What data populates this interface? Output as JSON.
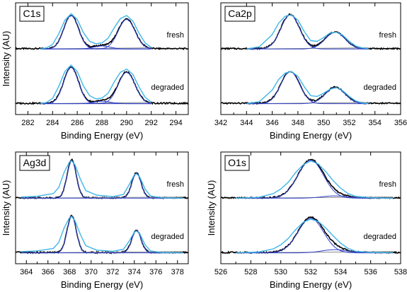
{
  "chart_data": [
    {
      "type": "line",
      "panel_label": "C1s",
      "xlabel": "Binding Energy (eV)",
      "ylabel": "Intensity (AU)",
      "xlim": [
        281,
        295
      ],
      "xticks": [
        282,
        284,
        286,
        288,
        290,
        292,
        294
      ],
      "ylim": [
        0,
        1
      ],
      "annotations": [
        "fresh",
        "degraded"
      ],
      "peaks": [
        {
          "center": 285.5,
          "fwhm": 1.4,
          "height_fresh": 0.88,
          "height_degraded": 0.9
        },
        {
          "center": 290.0,
          "fwhm": 1.6,
          "height_fresh": 0.78,
          "height_degraded": 0.78
        },
        {
          "center": 288.0,
          "fwhm": 1.6,
          "height_fresh": 0.08,
          "height_degraded": 0.06
        }
      ],
      "series": [
        {
          "name": "fresh",
          "offset": 0.55,
          "x": [
            283.0,
            283.5,
            284.0,
            284.5,
            285.0,
            285.5,
            286.0,
            286.5,
            287.0,
            287.5,
            288.0,
            288.5,
            289.0,
            289.5,
            290.0,
            290.5,
            291.0,
            291.5,
            292.0
          ],
          "y": [
            0.02,
            0.05,
            0.14,
            0.42,
            0.78,
            0.95,
            0.8,
            0.45,
            0.22,
            0.16,
            0.18,
            0.3,
            0.58,
            0.82,
            0.9,
            0.76,
            0.44,
            0.18,
            0.06
          ]
        },
        {
          "name": "degraded",
          "offset": 0.0,
          "x": [
            283.0,
            283.5,
            284.0,
            284.5,
            285.0,
            285.5,
            286.0,
            286.5,
            287.0,
            287.5,
            288.0,
            288.5,
            289.0,
            289.5,
            290.0,
            290.5,
            291.0,
            291.5,
            292.0
          ],
          "y": [
            0.02,
            0.05,
            0.15,
            0.45,
            0.82,
            0.98,
            0.82,
            0.46,
            0.22,
            0.14,
            0.16,
            0.28,
            0.56,
            0.8,
            0.88,
            0.75,
            0.44,
            0.18,
            0.06
          ]
        }
      ]
    },
    {
      "type": "line",
      "panel_label": "Ca2p",
      "xlabel": "Binding Energy (eV)",
      "ylabel": "",
      "xlim": [
        342,
        356
      ],
      "xticks": [
        342,
        344,
        346,
        348,
        350,
        352,
        354,
        356
      ],
      "ylim": [
        0,
        1
      ],
      "annotations": [
        "fresh",
        "degraded"
      ],
      "peaks": [
        {
          "center": 347.4,
          "fwhm": 1.7,
          "height_fresh": 0.9,
          "height_degraded": 0.8
        },
        {
          "center": 350.9,
          "fwhm": 1.8,
          "height_fresh": 0.44,
          "height_degraded": 0.4
        }
      ],
      "series": [
        {
          "name": "fresh",
          "offset": 0.55,
          "x": [
            344.0,
            345.0,
            346.0,
            346.5,
            347.0,
            347.5,
            348.0,
            348.5,
            349.0,
            349.5,
            350.0,
            350.5,
            351.0,
            351.5,
            352.0,
            352.5,
            353.0,
            353.5
          ],
          "y": [
            0.02,
            0.08,
            0.4,
            0.7,
            0.88,
            0.92,
            0.78,
            0.48,
            0.24,
            0.22,
            0.32,
            0.44,
            0.46,
            0.38,
            0.22,
            0.1,
            0.05,
            0.03
          ]
        },
        {
          "name": "degraded",
          "offset": 0.0,
          "x": [
            344.0,
            345.0,
            346.0,
            346.5,
            347.0,
            347.5,
            348.0,
            348.5,
            349.0,
            349.5,
            350.0,
            350.5,
            351.0,
            351.5,
            352.0,
            352.5,
            353.0,
            353.5
          ],
          "y": [
            0.02,
            0.07,
            0.36,
            0.62,
            0.78,
            0.82,
            0.7,
            0.44,
            0.22,
            0.2,
            0.28,
            0.38,
            0.42,
            0.34,
            0.2,
            0.09,
            0.04,
            0.02
          ]
        }
      ]
    },
    {
      "type": "line",
      "panel_label": "Ag3d",
      "xlabel": "Binding Energy (eV)",
      "ylabel": "Intensity (AU)",
      "xlim": [
        363,
        379
      ],
      "xticks": [
        364,
        366,
        368,
        370,
        372,
        374,
        376,
        378
      ],
      "ylim": [
        0,
        1
      ],
      "annotations": [
        "fresh",
        "degraded"
      ],
      "peaks": [
        {
          "center": 368.2,
          "fwhm": 1.0,
          "height_fresh": 1.0,
          "height_degraded": 0.92
        },
        {
          "center": 374.2,
          "fwhm": 1.0,
          "height_fresh": 0.66,
          "height_degraded": 0.56
        }
      ],
      "series": [
        {
          "name": "fresh",
          "offset": 0.55,
          "x": [
            363.5,
            365.0,
            366.5,
            367.0,
            367.5,
            368.0,
            368.2,
            368.5,
            369.0,
            369.5,
            370.5,
            372.0,
            373.0,
            373.5,
            374.0,
            374.2,
            374.5,
            375.0,
            375.5,
            376.5,
            378.5
          ],
          "y": [
            0.05,
            0.07,
            0.14,
            0.3,
            0.7,
            0.98,
            1.0,
            0.9,
            0.52,
            0.22,
            0.1,
            0.06,
            0.12,
            0.36,
            0.64,
            0.66,
            0.58,
            0.26,
            0.08,
            0.03,
            0.02
          ]
        },
        {
          "name": "degraded",
          "offset": 0.0,
          "x": [
            363.5,
            365.0,
            366.5,
            367.0,
            367.5,
            368.0,
            368.2,
            368.5,
            369.0,
            369.5,
            370.5,
            372.0,
            373.0,
            373.5,
            374.0,
            374.2,
            374.5,
            375.0,
            375.5,
            376.5,
            378.5
          ],
          "y": [
            0.05,
            0.07,
            0.13,
            0.28,
            0.64,
            0.9,
            0.92,
            0.82,
            0.48,
            0.2,
            0.09,
            0.06,
            0.11,
            0.3,
            0.54,
            0.56,
            0.5,
            0.22,
            0.07,
            0.03,
            0.02
          ]
        }
      ]
    },
    {
      "type": "line",
      "panel_label": "O1s",
      "xlabel": "Binding Energy (eV)",
      "ylabel": "Intensity (AU)",
      "xlim": [
        526,
        538
      ],
      "xticks": [
        526,
        528,
        530,
        532,
        534,
        536,
        538
      ],
      "ylim": [
        0,
        1
      ],
      "annotations": [
        "fresh",
        "degraded"
      ],
      "peaks": [
        {
          "center": 532.0,
          "fwhm": 2.0,
          "height_fresh": 1.0,
          "height_degraded": 0.86
        },
        {
          "center": 533.6,
          "fwhm": 2.0,
          "height_fresh": 0.06,
          "height_degraded": 0.08
        }
      ],
      "series": [
        {
          "name": "fresh",
          "offset": 0.55,
          "x": [
            527.0,
            528.5,
            529.5,
            530.0,
            530.5,
            531.0,
            531.5,
            532.0,
            532.5,
            533.0,
            533.5,
            534.0,
            534.5,
            535.0,
            536.0,
            537.5
          ],
          "y": [
            0.02,
            0.04,
            0.14,
            0.26,
            0.44,
            0.7,
            0.9,
            1.0,
            0.92,
            0.72,
            0.48,
            0.28,
            0.14,
            0.07,
            0.03,
            0.02
          ]
        },
        {
          "name": "degraded",
          "offset": 0.0,
          "x": [
            527.0,
            528.5,
            529.5,
            530.0,
            530.5,
            531.0,
            531.5,
            532.0,
            532.5,
            533.0,
            533.5,
            534.0,
            534.5,
            535.0,
            536.0,
            537.5
          ],
          "y": [
            0.02,
            0.04,
            0.12,
            0.22,
            0.38,
            0.6,
            0.78,
            0.86,
            0.8,
            0.64,
            0.44,
            0.26,
            0.13,
            0.06,
            0.03,
            0.02
          ]
        }
      ]
    }
  ],
  "colors": {
    "data_line": "#000000",
    "envelope": "#3fb6e8",
    "component": "#2e3fc8",
    "background_line": "#888888"
  }
}
